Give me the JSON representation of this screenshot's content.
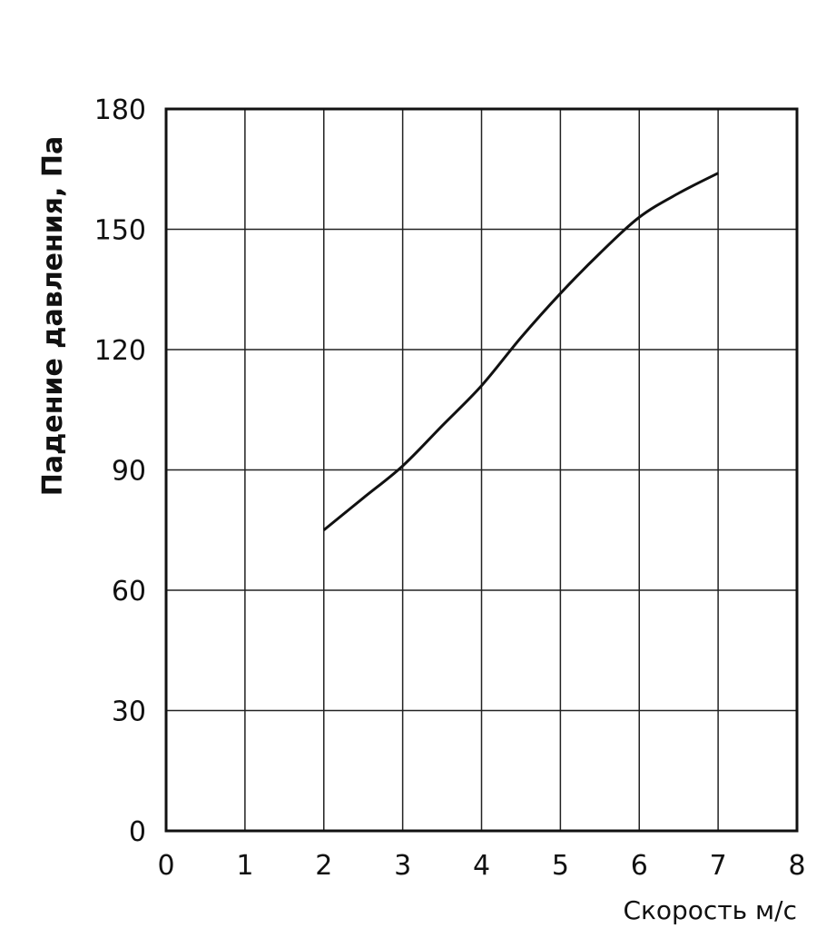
{
  "chart_data": {
    "type": "line",
    "title": "",
    "xlabel": "Скорость м/с",
    "ylabel": "Падение давления, Па",
    "xlim": [
      0,
      8
    ],
    "ylim": [
      0,
      180
    ],
    "xticks": [
      0,
      1,
      2,
      3,
      4,
      5,
      6,
      7,
      8
    ],
    "yticks": [
      0,
      30,
      60,
      90,
      120,
      150,
      180
    ],
    "grid": true,
    "series": [
      {
        "x": [
          2,
          2.5,
          3,
          3.5,
          4,
          4.5,
          5,
          5.5,
          6,
          6.5,
          7
        ],
        "y": [
          75,
          83,
          91,
          101,
          111,
          123,
          134,
          144,
          153,
          159,
          164
        ]
      }
    ]
  }
}
